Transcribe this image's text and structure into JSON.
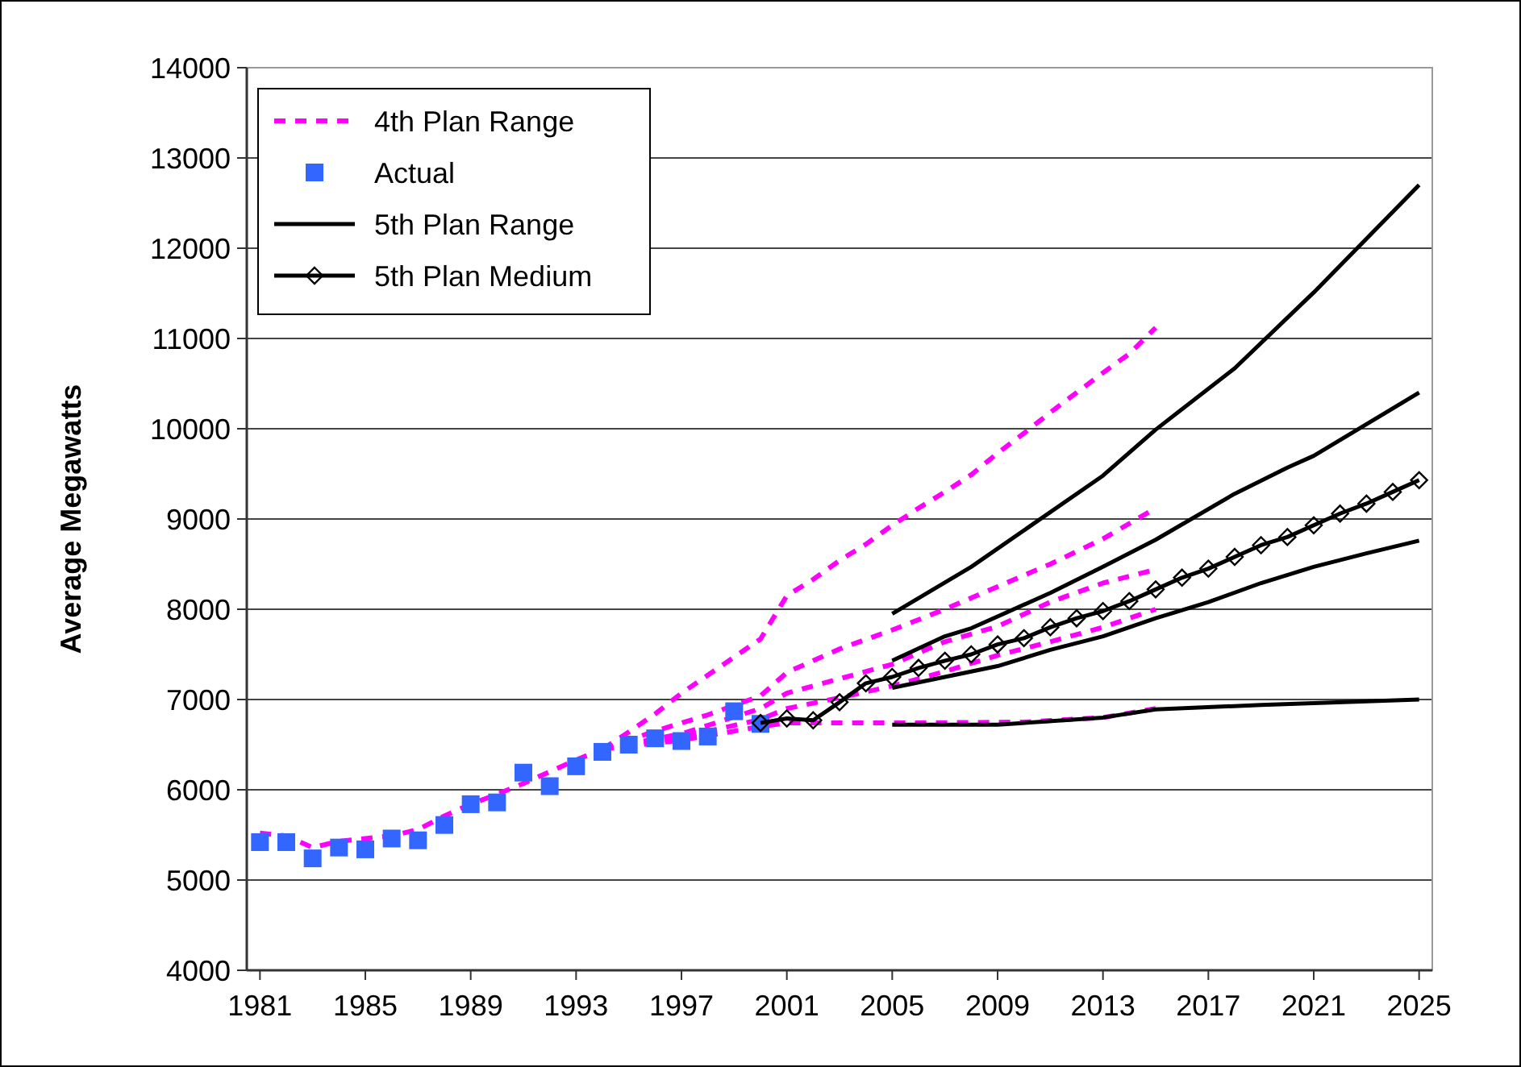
{
  "chart_data": {
    "type": "line",
    "ylabel": "Average Megawatts",
    "xlim": [
      1980.5,
      2025.5
    ],
    "xticks": [
      1981,
      1985,
      1989,
      1993,
      1997,
      2001,
      2005,
      2009,
      2013,
      2017,
      2021,
      2025
    ],
    "ylim": [
      4000,
      14000
    ],
    "yticks": [
      4000,
      5000,
      6000,
      7000,
      8000,
      9000,
      10000,
      11000,
      12000,
      13000,
      14000
    ],
    "grid": "y",
    "legend": "top left",
    "series": [
      {
        "name": "4th Plan Range",
        "color": "#ff00ff",
        "line_style": "dashed",
        "marker": "none",
        "x": [
          1981,
          1982,
          1983,
          1984,
          1985,
          1986,
          1987,
          1988,
          1989,
          1990,
          1991,
          1992,
          1993,
          1994
        ],
        "values": [
          5520,
          5490,
          5360,
          5430,
          5460,
          5490,
          5560,
          5710,
          5840,
          5950,
          6070,
          6200,
          6330,
          6450
        ]
      },
      {
        "color": "#ff00ff",
        "line_style": "dashed",
        "marker": "none",
        "x": [
          1994,
          1995,
          1996,
          1997,
          1998,
          1999,
          2000,
          2001,
          2002,
          2003,
          2004,
          2005,
          2006,
          2007,
          2008,
          2009,
          2010,
          2011,
          2012,
          2013,
          2014,
          2015
        ],
        "values": [
          6450,
          6640,
          6840,
          7070,
          7270,
          7470,
          7670,
          8150,
          8330,
          8540,
          8720,
          8930,
          9120,
          9300,
          9490,
          9730,
          9950,
          10180,
          10400,
          10620,
          10830,
          11120
        ]
      },
      {
        "color": "#ff00ff",
        "line_style": "dashed",
        "marker": "none",
        "x": [
          1994,
          1996,
          1998,
          2000,
          2001,
          2003,
          2005,
          2007,
          2009,
          2011,
          2013,
          2015
        ],
        "values": [
          6450,
          6650,
          6830,
          7040,
          7300,
          7560,
          7770,
          8000,
          8250,
          8500,
          8780,
          9120
        ]
      },
      {
        "color": "#ff00ff",
        "line_style": "dashed",
        "marker": "none",
        "x": [
          1994,
          1997,
          2000,
          2001,
          2003,
          2005,
          2007,
          2009,
          2011,
          2013,
          2015
        ],
        "values": [
          6450,
          6620,
          6900,
          7070,
          7230,
          7390,
          7640,
          7810,
          8080,
          8290,
          8440
        ]
      },
      {
        "color": "#ff00ff",
        "line_style": "dashed",
        "marker": "none",
        "x": [
          1994,
          1997,
          2000,
          2001,
          2003,
          2005,
          2007,
          2009,
          2011,
          2013,
          2015
        ],
        "values": [
          6450,
          6580,
          6780,
          6900,
          7020,
          7150,
          7310,
          7490,
          7640,
          7800,
          8000
        ]
      },
      {
        "color": "#ff00ff",
        "line_style": "dashed",
        "marker": "none",
        "x": [
          1994,
          1997,
          2000,
          2001,
          2005,
          2010,
          2013,
          2015
        ],
        "values": [
          6450,
          6550,
          6700,
          6740,
          6740,
          6750,
          6800,
          6900
        ]
      },
      {
        "name": "Actual",
        "type": "scatter",
        "color": "#3366ff",
        "marker": "square",
        "x": [
          1981,
          1982,
          1983,
          1984,
          1985,
          1986,
          1987,
          1988,
          1989,
          1990,
          1991,
          1992,
          1993,
          1994,
          1995,
          1996,
          1997,
          1998,
          1999,
          2000
        ],
        "values": [
          5420,
          5420,
          5240,
          5360,
          5340,
          5460,
          5440,
          5610,
          5840,
          5860,
          6190,
          6040,
          6260,
          6420,
          6500,
          6570,
          6540,
          6590,
          6870,
          6730
        ]
      },
      {
        "name": "5th Plan Range",
        "color": "#000000",
        "line_style": "solid",
        "marker": "none",
        "x": [
          2005,
          2008,
          2013,
          2015,
          2018,
          2021,
          2025
        ],
        "values": [
          7950,
          8470,
          9480,
          9990,
          10670,
          11510,
          12700
        ]
      },
      {
        "color": "#000000",
        "line_style": "solid",
        "marker": "none",
        "x": [
          2005,
          2007,
          2008,
          2011,
          2013,
          2015,
          2018,
          2020,
          2021,
          2025
        ],
        "values": [
          7430,
          7700,
          7790,
          8180,
          8470,
          8770,
          9280,
          9570,
          9700,
          10400
        ]
      },
      {
        "color": "#000000",
        "line_style": "solid",
        "marker": "none",
        "x": [
          2005,
          2007,
          2009,
          2011,
          2013,
          2015,
          2017,
          2019,
          2021,
          2023,
          2025
        ],
        "values": [
          7130,
          7250,
          7370,
          7550,
          7700,
          7900,
          8080,
          8290,
          8470,
          8620,
          8760
        ]
      },
      {
        "color": "#000000",
        "line_style": "solid",
        "marker": "none",
        "x": [
          2005,
          2009,
          2013,
          2015,
          2019,
          2021,
          2025
        ],
        "values": [
          6720,
          6720,
          6800,
          6890,
          6940,
          6960,
          7000
        ]
      },
      {
        "name": "5th Plan Medium",
        "color": "#000000",
        "line_style": "solid",
        "marker": "diamond",
        "x": [
          2000,
          2001,
          2002,
          2003,
          2004,
          2005,
          2006,
          2007,
          2008,
          2009,
          2010,
          2011,
          2012,
          2013,
          2014,
          2015,
          2016,
          2017,
          2018,
          2019,
          2020,
          2021,
          2022,
          2023,
          2024,
          2025
        ],
        "values": [
          6740,
          6790,
          6770,
          6970,
          7180,
          7250,
          7350,
          7430,
          7500,
          7610,
          7680,
          7800,
          7900,
          7980,
          8090,
          8220,
          8350,
          8450,
          8580,
          8710,
          8800,
          8930,
          9060,
          9170,
          9300,
          9430
        ]
      }
    ]
  }
}
